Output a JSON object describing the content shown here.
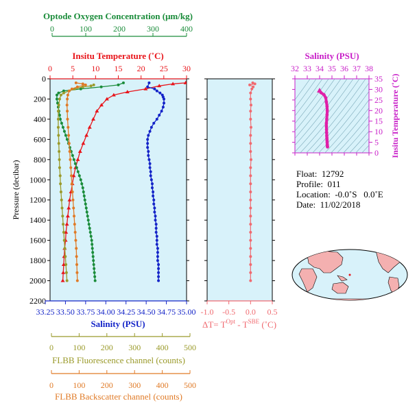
{
  "chart_data": [
    {
      "type": "line",
      "panel": "main-profile",
      "y_axis": {
        "label": "Pressure (decibar)",
        "lim": [
          0,
          2200
        ],
        "reversed": true,
        "ticks": [
          0,
          200,
          400,
          600,
          800,
          1000,
          1200,
          1400,
          1600,
          1800,
          2000,
          2200
        ]
      },
      "axes": {
        "oxygen": {
          "label": "Optode Oxygen Concentration (μm/kg)",
          "lim": [
            0,
            400
          ],
          "ticks": [
            0,
            100,
            200,
            300,
            400
          ],
          "color": "#1a8c3a"
        },
        "temperature": {
          "label": "Insitu Temperature (˚C)",
          "lim": [
            0,
            30
          ],
          "ticks": [
            0,
            5,
            10,
            15,
            20,
            25,
            30
          ],
          "color": "#e8141a"
        },
        "salinity": {
          "label": "Salinity (PSU)",
          "lim": [
            33.25,
            35.0
          ],
          "ticks": [
            "33.25",
            "33.50",
            "33.75",
            "34.00",
            "34.25",
            "34.50",
            "34.75",
            "35.00"
          ],
          "color": "#1424c8"
        },
        "fluorescence": {
          "label": "FLBB Fluorescence channel (counts)",
          "lim": [
            0,
            500
          ],
          "ticks": [
            0,
            100,
            200,
            300,
            400,
            500
          ],
          "color": "#9a9a2a"
        },
        "backscatter": {
          "label": "FLBB Backscatter channel (counts)",
          "lim": [
            0,
            500
          ],
          "ticks": [
            0,
            100,
            200,
            300,
            400,
            500
          ],
          "color": "#e07a26"
        }
      },
      "series": [
        {
          "axis": "temperature",
          "color": "#e8141a",
          "marker": "triangle",
          "points": [
            [
              29.8,
              40
            ],
            [
              27,
              50
            ],
            [
              24,
              70
            ],
            [
              21,
              100
            ],
            [
              17,
              130
            ],
            [
              14,
              160
            ],
            [
              12.5,
              200
            ],
            [
              11.3,
              260
            ],
            [
              10.3,
              320
            ],
            [
              9.5,
              400
            ],
            [
              8.7,
              480
            ],
            [
              8,
              560
            ],
            [
              7.3,
              640
            ],
            [
              6.6,
              720
            ],
            [
              6.1,
              800
            ],
            [
              5.6,
              880
            ],
            [
              5.2,
              960
            ],
            [
              4.9,
              1040
            ],
            [
              4.6,
              1120
            ],
            [
              4.3,
              1200
            ],
            [
              4.1,
              1280
            ],
            [
              3.9,
              1360
            ],
            [
              3.7,
              1440
            ],
            [
              3.5,
              1520
            ],
            [
              3.4,
              1600
            ],
            [
              3.2,
              1680
            ],
            [
              3.1,
              1760
            ],
            [
              3.0,
              1840
            ],
            [
              2.9,
              1920
            ],
            [
              2.8,
              2000
            ]
          ]
        },
        {
          "axis": "salinity",
          "color": "#1424c8",
          "marker": "circle",
          "points": [
            [
              34.52,
              40
            ],
            [
              34.5,
              80
            ],
            [
              34.59,
              100
            ],
            [
              34.62,
              120
            ],
            [
              34.66,
              140
            ],
            [
              34.69,
              160
            ],
            [
              34.7,
              180
            ],
            [
              34.71,
              200
            ],
            [
              34.71,
              240
            ],
            [
              34.7,
              280
            ],
            [
              34.68,
              320
            ],
            [
              34.65,
              360
            ],
            [
              34.62,
              400
            ],
            [
              34.58,
              440
            ],
            [
              34.55,
              480
            ],
            [
              34.53,
              520
            ],
            [
              34.51,
              560
            ],
            [
              34.5,
              600
            ],
            [
              34.5,
              640
            ],
            [
              34.5,
              680
            ],
            [
              34.51,
              720
            ],
            [
              34.51,
              760
            ],
            [
              34.52,
              800
            ],
            [
              34.53,
              840
            ],
            [
              34.53,
              880
            ],
            [
              34.54,
              920
            ],
            [
              34.54,
              960
            ],
            [
              34.55,
              1000
            ],
            [
              34.56,
              1040
            ],
            [
              34.56,
              1080
            ],
            [
              34.57,
              1120
            ],
            [
              34.57,
              1160
            ],
            [
              34.58,
              1200
            ],
            [
              34.58,
              1240
            ],
            [
              34.59,
              1280
            ],
            [
              34.59,
              1320
            ],
            [
              34.6,
              1360
            ],
            [
              34.6,
              1400
            ],
            [
              34.61,
              1440
            ],
            [
              34.61,
              1480
            ],
            [
              34.61,
              1520
            ],
            [
              34.62,
              1560
            ],
            [
              34.62,
              1600
            ],
            [
              34.62,
              1640
            ],
            [
              34.63,
              1680
            ],
            [
              34.63,
              1720
            ],
            [
              34.63,
              1760
            ],
            [
              34.63,
              1800
            ],
            [
              34.64,
              1840
            ],
            [
              34.64,
              1880
            ],
            [
              34.64,
              1920
            ],
            [
              34.64,
              1960
            ],
            [
              34.64,
              2000
            ]
          ]
        },
        {
          "axis": "oxygen",
          "color": "#1a8c3a",
          "marker": "circle",
          "points": [
            [
              215,
              40
            ],
            [
              200,
              60
            ],
            [
              150,
              80
            ],
            [
              90,
              100
            ],
            [
              40,
              120
            ],
            [
              25,
              140
            ],
            [
              20,
              160
            ],
            [
              20,
              200
            ],
            [
              22,
              240
            ],
            [
              24,
              280
            ],
            [
              26,
              320
            ],
            [
              28,
              360
            ],
            [
              30,
              400
            ],
            [
              34,
              440
            ],
            [
              38,
              480
            ],
            [
              42,
              520
            ],
            [
              46,
              560
            ],
            [
              50,
              600
            ],
            [
              54,
              640
            ],
            [
              58,
              680
            ],
            [
              62,
              720
            ],
            [
              66,
              760
            ],
            [
              70,
              800
            ],
            [
              74,
              840
            ],
            [
              78,
              880
            ],
            [
              82,
              920
            ],
            [
              86,
              960
            ],
            [
              90,
              1000
            ],
            [
              93,
              1040
            ],
            [
              96,
              1080
            ],
            [
              98,
              1120
            ],
            [
              100,
              1160
            ],
            [
              102,
              1200
            ],
            [
              104,
              1240
            ],
            [
              106,
              1280
            ],
            [
              108,
              1320
            ],
            [
              110,
              1360
            ],
            [
              112,
              1400
            ],
            [
              114,
              1440
            ],
            [
              116,
              1480
            ],
            [
              118,
              1520
            ],
            [
              120,
              1560
            ],
            [
              122,
              1600
            ],
            [
              123,
              1640
            ],
            [
              124,
              1680
            ],
            [
              125,
              1720
            ],
            [
              126,
              1760
            ],
            [
              127,
              1800
            ],
            [
              128,
              1840
            ],
            [
              129,
              1880
            ],
            [
              130,
              1920
            ],
            [
              131,
              1960
            ],
            [
              132,
              2000
            ]
          ]
        },
        {
          "axis": "fluorescence",
          "color": "#9a9a2a",
          "marker": "circle",
          "points": [
            [
              160,
              60
            ],
            [
              150,
              70
            ],
            [
              120,
              80
            ],
            [
              90,
              100
            ],
            [
              70,
              120
            ],
            [
              50,
              140
            ],
            [
              40,
              160
            ],
            [
              35,
              200
            ],
            [
              32,
              260
            ],
            [
              30,
              320
            ],
            [
              30,
              400
            ],
            [
              30,
              480
            ],
            [
              31,
              560
            ],
            [
              32,
              640
            ],
            [
              33,
              720
            ],
            [
              34,
              800
            ],
            [
              35,
              880
            ],
            [
              37,
              960
            ],
            [
              38,
              1040
            ],
            [
              40,
              1120
            ],
            [
              42,
              1200
            ],
            [
              44,
              1280
            ],
            [
              46,
              1360
            ],
            [
              48,
              1440
            ],
            [
              50,
              1520
            ],
            [
              52,
              1600
            ],
            [
              54,
              1680
            ],
            [
              56,
              1760
            ],
            [
              58,
              1840
            ],
            [
              60,
              1920
            ],
            [
              62,
              2000
            ]
          ]
        },
        {
          "axis": "backscatter",
          "color": "#e07a26",
          "marker": "circle",
          "points": [
            [
              95,
              40
            ],
            [
              120,
              50
            ],
            [
              130,
              60
            ],
            [
              100,
              80
            ],
            [
              80,
              100
            ],
            [
              70,
              120
            ],
            [
              65,
              160
            ],
            [
              63,
              200
            ],
            [
              62,
              260
            ],
            [
              63,
              320
            ],
            [
              64,
              400
            ],
            [
              66,
              480
            ],
            [
              68,
              560
            ],
            [
              70,
              640
            ],
            [
              72,
              720
            ],
            [
              74,
              800
            ],
            [
              76,
              880
            ],
            [
              78,
              960
            ],
            [
              80,
              1040
            ],
            [
              82,
              1120
            ],
            [
              84,
              1200
            ],
            [
              86,
              1280
            ],
            [
              88,
              1360
            ],
            [
              90,
              1440
            ],
            [
              92,
              1520
            ],
            [
              94,
              1600
            ],
            [
              96,
              1680
            ],
            [
              97,
              1760
            ],
            [
              98,
              1840
            ],
            [
              99,
              1920
            ],
            [
              100,
              2000
            ]
          ]
        }
      ]
    },
    {
      "type": "scatter",
      "panel": "delta-t",
      "xlabel": "ΔT= T",
      "xlabel_sup1": "Opt",
      "xlabel_mid": " - T",
      "xlabel_sup2": "SBE",
      "xlabel_tail": " (˚C)",
      "xlim": [
        -1.0,
        0.5
      ],
      "x_ticks": [
        "-1.0",
        "-0.5",
        "0.0",
        "0.5"
      ],
      "ylim": [
        0,
        2200
      ],
      "color": "#f06a70",
      "points": [
        [
          0.05,
          40
        ],
        [
          0.1,
          50
        ],
        [
          -0.02,
          60
        ],
        [
          0.06,
          80
        ],
        [
          0.03,
          100
        ],
        [
          0.0,
          140
        ],
        [
          0.0,
          200
        ],
        [
          0.01,
          260
        ],
        [
          0.0,
          320
        ],
        [
          0.0,
          400
        ],
        [
          0.01,
          480
        ],
        [
          0.0,
          560
        ],
        [
          0.0,
          640
        ],
        [
          0.0,
          720
        ],
        [
          0.01,
          800
        ],
        [
          0.0,
          880
        ],
        [
          0.0,
          960
        ],
        [
          0.0,
          1040
        ],
        [
          0.0,
          1120
        ],
        [
          0.0,
          1200
        ],
        [
          0.0,
          1280
        ],
        [
          0.0,
          1360
        ],
        [
          0.0,
          1440
        ],
        [
          0.0,
          1520
        ],
        [
          0.0,
          1600
        ],
        [
          0.0,
          1680
        ],
        [
          0.0,
          1760
        ],
        [
          0.0,
          1840
        ],
        [
          0.0,
          1920
        ],
        [
          0.0,
          2000
        ]
      ]
    },
    {
      "type": "scatter",
      "panel": "ts-diagram",
      "xlabel": "Salinity (PSU)",
      "x_ticks": [
        32,
        33,
        34,
        35,
        36,
        37,
        38
      ],
      "xlim": [
        32,
        38
      ],
      "ylabel": "Insitu Temperature (˚C)",
      "y_ticks": [
        0,
        5,
        10,
        15,
        20,
        25,
        30,
        35
      ],
      "ylim": [
        0,
        35
      ],
      "color": "#e020a8",
      "points": [
        [
          34.0,
          29.5
        ],
        [
          34.1,
          28.5
        ],
        [
          34.35,
          27.5
        ],
        [
          34.5,
          26
        ],
        [
          34.55,
          24
        ],
        [
          34.6,
          22
        ],
        [
          34.62,
          20
        ],
        [
          34.6,
          18
        ],
        [
          34.58,
          16
        ],
        [
          34.55,
          14
        ],
        [
          34.55,
          12.5
        ],
        [
          34.56,
          11
        ],
        [
          34.57,
          9.5
        ],
        [
          34.58,
          8
        ],
        [
          34.59,
          7
        ],
        [
          34.6,
          6
        ],
        [
          34.61,
          5
        ],
        [
          34.62,
          4
        ],
        [
          34.63,
          3.2
        ],
        [
          34.64,
          2.8
        ]
      ]
    }
  ],
  "info": {
    "float": "Float:  12792",
    "profile": "Profile:  011",
    "location": "Location:  -0.0˚S   0.0˚E",
    "date": "Date:  11/02/2018"
  },
  "colors": {
    "panel_bg": "#d8f2fa",
    "ts_bg": "#d8f2fa",
    "map_ocean": "#d8f2fa",
    "map_land": "#f4b0b0",
    "frame": "#000000",
    "deltat_axis": "#f06a70",
    "ts_axis": "#c81ec8"
  }
}
